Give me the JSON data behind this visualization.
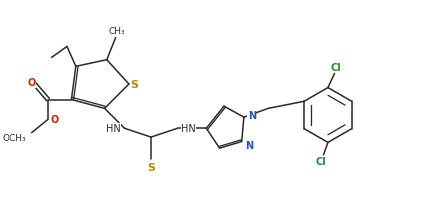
{
  "background_color": "#ffffff",
  "figsize": [
    4.37,
    2.01
  ],
  "dpi": 100,
  "bond_color": "#2a2a2a",
  "S_color": "#bb8800",
  "N_color": "#1a55bb",
  "O_color": "#cc2200",
  "Cl_color": "#228833",
  "line_width": 1.1,
  "font_size": 7.0,
  "xlim": [
    0.0,
    9.5
  ],
  "ylim": [
    0.5,
    4.5
  ]
}
